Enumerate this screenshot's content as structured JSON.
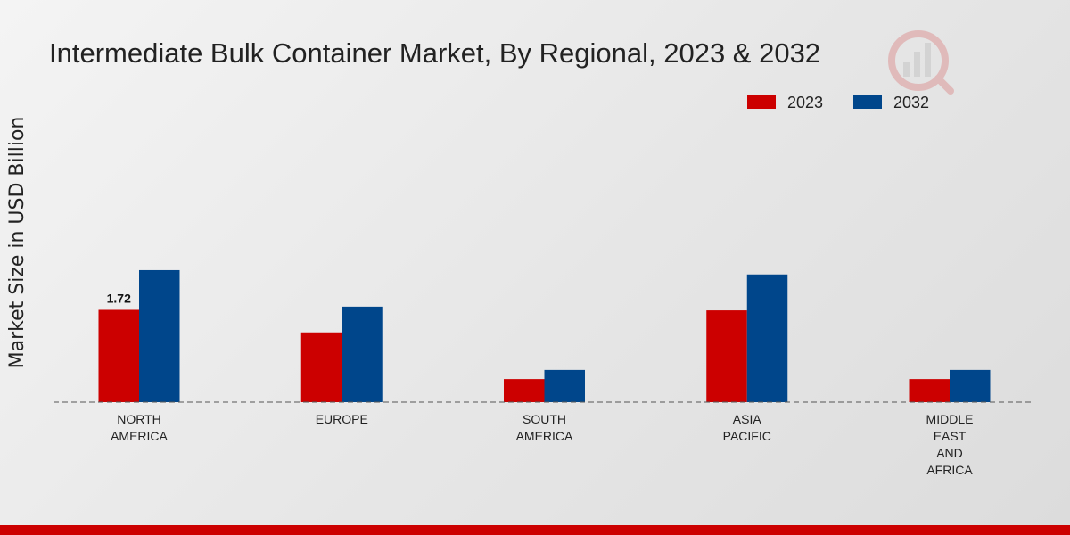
{
  "chart_data": {
    "type": "bar",
    "title": "Intermediate Bulk Container Market, By Regional, 2023 & 2032",
    "xlabel": "",
    "ylabel": "Market Size in USD Billion",
    "categories": [
      [
        "NORTH",
        "AMERICA"
      ],
      [
        "EUROPE"
      ],
      [
        "SOUTH",
        "AMERICA"
      ],
      [
        "ASIA",
        "PACIFIC"
      ],
      [
        "MIDDLE",
        "EAST",
        "AND",
        "AFRICA"
      ]
    ],
    "series": [
      {
        "name": "2023",
        "color": "#cc0000",
        "values": [
          1.72,
          1.3,
          0.43,
          1.71,
          0.43
        ]
      },
      {
        "name": "2032",
        "color": "#00468b",
        "values": [
          2.46,
          1.78,
          0.6,
          2.38,
          0.6
        ]
      }
    ],
    "data_labels": [
      {
        "series": 0,
        "index": 0,
        "text": "1.72"
      }
    ],
    "ylim": [
      0,
      5.5
    ],
    "grid": false,
    "legend_position": "top-right"
  },
  "logo": {
    "icon": "logo-watermark-icon"
  },
  "colors": {
    "accent_bar": "#cc0000"
  }
}
